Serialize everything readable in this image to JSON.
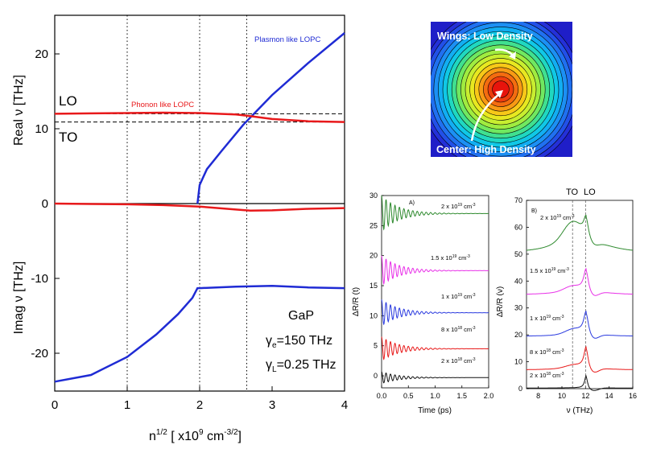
{
  "main_plot": {
    "upper_ylabel": "Real ν [THz]",
    "lower_ylabel": "Imag ν [THz]",
    "xlabel": "n^{1/2} [ x10^9 cm^{-3/2}]",
    "xlabel_parts": {
      "base": "n",
      "base_sup": "1/2",
      "mid": " [ x10",
      "mid_sup": "9",
      "cm": " cm",
      "cm_sup": "-3/2",
      "end": "]"
    },
    "lo_label": "LO",
    "to_label": "TO",
    "plasmon_label": "Plasmon like LOPC",
    "phonon_label": "Phonon like LOPC",
    "material": "GaP",
    "gamma_e_text": {
      "sym": "γ",
      "sub": "e",
      "rest": "=150 THz"
    },
    "gamma_l_text": {
      "sym": "γ",
      "sub": "L",
      "rest": "=0.25 THz"
    },
    "x_ticks": [
      "0",
      "1",
      "2",
      "3",
      "4"
    ],
    "upper_y_ticks": [
      "0",
      "10",
      "20"
    ],
    "lower_y_ticks": [
      "-10",
      "-20"
    ]
  },
  "density_image": {
    "wings_label": "Wings: Low Density",
    "center_label": "Center: High Density"
  },
  "panel_a": {
    "letter": "A)",
    "xlabel": "Time (ps)",
    "ylabel": "ΔR/R (t)",
    "x_ticks": [
      "0.0",
      "0.5",
      "1.0",
      "1.5",
      "2.0"
    ],
    "y_ticks": [
      "0",
      "5",
      "10",
      "15",
      "20",
      "25",
      "30"
    ],
    "density_labels": [
      {
        "coef": "2 x 10",
        "exp": "19",
        "unit": " cm",
        "unit_exp": "-3"
      },
      {
        "coef": "1.5 x 10",
        "exp": "19",
        "unit": " cm",
        "unit_exp": "-3"
      },
      {
        "coef": "1 x 10",
        "exp": "19",
        "unit": " cm",
        "unit_exp": "-3"
      },
      {
        "coef": "8 x 10",
        "exp": "18",
        "unit": " cm",
        "unit_exp": "-3"
      },
      {
        "coef": "2 x 10",
        "exp": "18",
        "unit": " cm",
        "unit_exp": "-3"
      }
    ]
  },
  "panel_b": {
    "letter": "B)",
    "xlabel": "ν (THz)",
    "ylabel": "ΔR/R (ν)",
    "to_label": "TO",
    "lo_label": "LO",
    "x_ticks": [
      "8",
      "10",
      "12",
      "14",
      "16"
    ],
    "y_ticks": [
      "0",
      "10",
      "20",
      "30",
      "40",
      "50",
      "60",
      "70"
    ],
    "density_labels": [
      {
        "coef": "2 x 10",
        "exp": "19",
        "unit": " cm",
        "unit_exp": "-3"
      },
      {
        "coef": "1.5 x 10",
        "exp": "19",
        "unit": " cm",
        "unit_exp": "-3"
      },
      {
        "coef": "1 x 10",
        "exp": "19",
        "unit": " cm",
        "unit_exp": "-3"
      },
      {
        "coef": "8 x 10",
        "exp": "18",
        "unit": " cm",
        "unit_exp": "-3"
      },
      {
        "coef": "2 x 10",
        "exp": "18",
        "unit": " cm",
        "unit_exp": "-3"
      }
    ]
  },
  "colors": {
    "plasmon": "#1f2bd4",
    "phonon": "#e8191b",
    "green": "#2e8a2e",
    "magenta": "#e830e8",
    "blue": "#2a3adf",
    "red": "#e81a1a",
    "black": "#111111"
  },
  "chart_data": [
    {
      "type": "line",
      "panel": "upper",
      "xlim": [
        0,
        4
      ],
      "ylim": [
        0,
        25
      ],
      "reference_lines": {
        "LO": 12.0,
        "TO": 10.9,
        "vertical_dotted_x": [
          1,
          2,
          2.65
        ]
      },
      "series": [
        {
          "name": "Plasmon like LOPC",
          "x": [
            1.97,
            2.0,
            2.1,
            2.3,
            2.6,
            3.0,
            3.5,
            4.0
          ],
          "y": [
            0,
            2.5,
            4.6,
            7.0,
            10.5,
            14.5,
            18.8,
            22.8
          ]
        },
        {
          "name": "Phonon like LOPC",
          "x": [
            0,
            0.5,
            1.0,
            1.5,
            2.0,
            2.5,
            2.65,
            3.0,
            3.5,
            4.0
          ],
          "y": [
            12.0,
            12.05,
            12.1,
            12.15,
            12.1,
            11.9,
            11.75,
            11.3,
            11.0,
            10.9
          ]
        }
      ]
    },
    {
      "type": "line",
      "panel": "lower",
      "xlim": [
        0,
        4
      ],
      "ylim": [
        -25,
        0
      ],
      "series": [
        {
          "x": [
            0,
            0.5,
            1.0,
            1.4,
            1.7,
            1.9,
            1.97,
            2.0,
            2.5,
            3.0,
            3.5,
            4.0
          ],
          "y": [
            -23.8,
            -22.9,
            -20.5,
            -17.5,
            -14.8,
            -12.6,
            -11.3,
            -11.3,
            -11.1,
            -11.0,
            -11.2,
            -11.3
          ]
        },
        {
          "x": [
            0,
            0.5,
            1.0,
            1.5,
            2.0,
            2.5,
            2.7,
            3.0,
            3.5,
            4.0
          ],
          "y": [
            0,
            -0.05,
            -0.1,
            -0.2,
            -0.4,
            -0.8,
            -0.95,
            -0.9,
            -0.7,
            -0.6
          ]
        }
      ]
    },
    {
      "type": "line",
      "panel": "A",
      "xlabel": "Time (ps)",
      "ylabel": "ΔR/R (t)",
      "xlim": [
        0,
        2.0
      ],
      "ylim": [
        -2,
        30
      ],
      "series": [
        {
          "density": "2 x 10^19 cm^-3",
          "baseline": 27,
          "amplitude": 3.0
        },
        {
          "density": "1.5 x 10^19 cm^-3",
          "baseline": 17.5,
          "amplitude": 2.5
        },
        {
          "density": "1 x 10^19 cm^-3",
          "baseline": 10.5,
          "amplitude": 2.2
        },
        {
          "density": "8 x 10^18 cm^-3",
          "baseline": 4.5,
          "amplitude": 2.0
        },
        {
          "density": "2 x 10^18 cm^-3",
          "baseline": -0.3,
          "amplitude": 1.0
        }
      ]
    },
    {
      "type": "line",
      "panel": "B",
      "xlabel": "ν (THz)",
      "ylabel": "ΔR/R (ν)",
      "xlim": [
        7,
        16
      ],
      "ylim": [
        0,
        70
      ],
      "reference_lines": {
        "TO": 10.9,
        "LO": 12.0
      },
      "series": [
        {
          "density": "2 x 10^19 cm^-3",
          "x": [
            7,
            9,
            10,
            10.9,
            11.5,
            12.0,
            13,
            14,
            16
          ],
          "y": [
            51,
            55,
            58,
            65,
            62,
            68,
            59,
            55,
            52
          ]
        },
        {
          "density": "1.5 x 10^19 cm^-3",
          "x": [
            7,
            9,
            10,
            10.9,
            11.5,
            12.0,
            13,
            14,
            16
          ],
          "y": [
            35,
            37,
            38,
            40,
            41,
            48,
            40,
            37,
            35
          ]
        },
        {
          "density": "1 x 10^19 cm^-3",
          "x": [
            7,
            9,
            10,
            10.9,
            11.5,
            12.0,
            13,
            14,
            16
          ],
          "y": [
            20,
            21,
            22,
            23,
            24,
            31,
            25,
            22,
            20
          ]
        },
        {
          "density": "8 x 10^18 cm^-3",
          "x": [
            7,
            9,
            10,
            10.9,
            11.5,
            12.0,
            13,
            14,
            16
          ],
          "y": [
            7,
            8,
            8.5,
            9,
            10.5,
            17,
            10,
            8.5,
            7
          ]
        },
        {
          "density": "2 x 10^18 cm^-3",
          "x": [
            7,
            9,
            10,
            10.9,
            11.5,
            12.0,
            12.5,
            14,
            16
          ],
          "y": [
            0.2,
            0.2,
            0.3,
            0.4,
            0.8,
            5,
            1.5,
            0.5,
            0.3
          ]
        }
      ]
    }
  ]
}
